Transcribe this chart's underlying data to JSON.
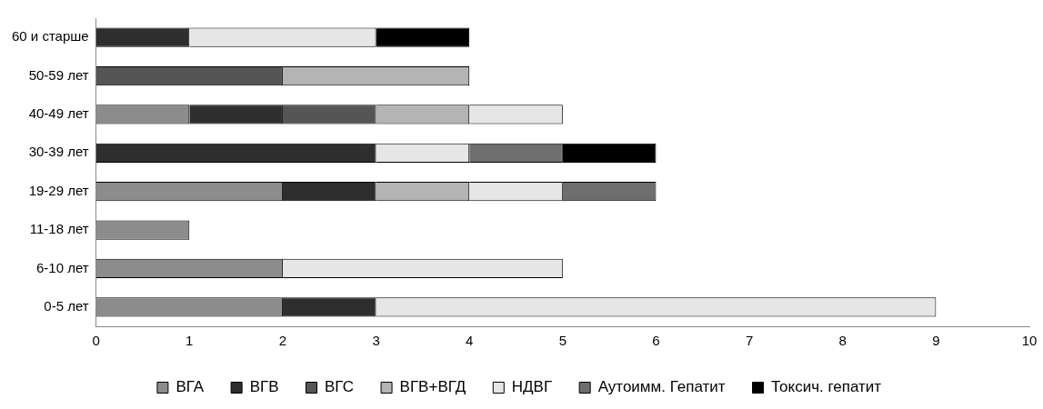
{
  "chart_data": {
    "type": "bar",
    "orientation": "horizontal",
    "stacked": true,
    "categories": [
      "60 и старше",
      "50-59 лет",
      "40-49 лет",
      "30-39 лет",
      "19-29 лет",
      "11-18 лет",
      "6-10 лет",
      "0-5 лет"
    ],
    "series": [
      {
        "name": "ВГА",
        "color": "#8c8c8c",
        "values": [
          0,
          0,
          1,
          0,
          2,
          1,
          2,
          2
        ]
      },
      {
        "name": "ВГВ",
        "color": "#2e2e2e",
        "values": [
          1,
          0,
          1,
          3,
          1,
          0,
          0,
          1
        ]
      },
      {
        "name": "ВГС",
        "color": "#555555",
        "values": [
          0,
          2,
          1,
          0,
          0,
          0,
          0,
          0
        ]
      },
      {
        "name": "ВГВ+ВГД",
        "color": "#b4b4b4",
        "values": [
          0,
          2,
          1,
          0,
          1,
          0,
          0,
          0
        ]
      },
      {
        "name": "НДВГ",
        "color": "#e6e6e6",
        "values": [
          2,
          0,
          1,
          1,
          1,
          0,
          3,
          6
        ]
      },
      {
        "name": "Аутоимм. Гепатит",
        "color": "#6e6e6e",
        "values": [
          0,
          0,
          0,
          1,
          1,
          0,
          0,
          0
        ]
      },
      {
        "name": "Токсич. гепатит",
        "color": "#000000",
        "values": [
          1,
          0,
          0,
          1,
          0,
          0,
          0,
          0
        ]
      }
    ],
    "xlim": [
      0,
      10
    ],
    "xticks": [
      0,
      1,
      2,
      3,
      4,
      5,
      6,
      7,
      8,
      9,
      10
    ],
    "grid": false,
    "legend": "bottom"
  }
}
